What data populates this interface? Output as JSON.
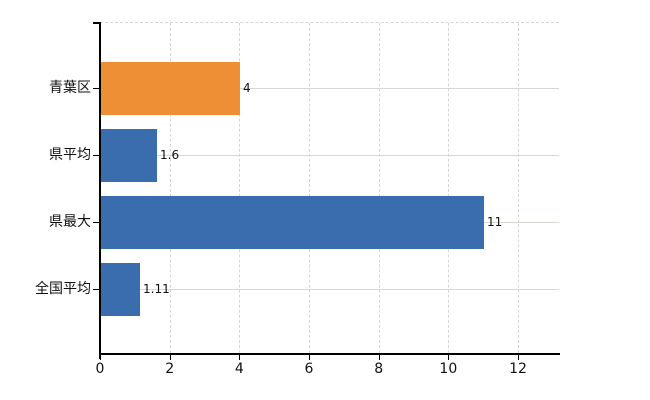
{
  "chart_data": {
    "type": "bar",
    "orientation": "horizontal",
    "title": "",
    "xlabel": "",
    "ylabel": "",
    "categories": [
      "青葉区",
      "県平均",
      "県最大",
      "全国平均"
    ],
    "values": [
      4,
      1.6,
      11,
      1.11
    ],
    "value_labels": [
      "4",
      "1.6",
      "11",
      "1.11"
    ],
    "bar_colors": [
      "#ee8f35",
      "#3a6dae",
      "#3a6dae",
      "#3a6dae"
    ],
    "x_axis": {
      "tick_labels": [
        "0",
        "2",
        "4",
        "6",
        "8",
        "10",
        "12"
      ],
      "tick_values": [
        0,
        2,
        4,
        6,
        8,
        10,
        12
      ],
      "min": 0,
      "max": 13.2
    },
    "grid": "on",
    "legend": "none"
  },
  "colors": {
    "orange_bar": "#ee8f35",
    "blue_bar": "#3a6dae",
    "axis_line": "#000000",
    "horizontal_gridline": "#d2dad2",
    "vertical_gridline": "#d8d5da",
    "background": "#ffffff",
    "label_text": "#111111"
  }
}
